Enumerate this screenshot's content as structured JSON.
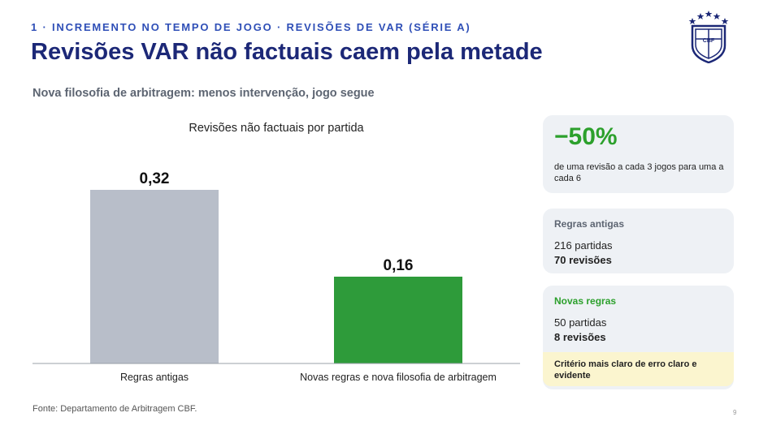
{
  "header": {
    "eyebrow": "1 · INCREMENTO NO TEMPO DE JOGO  · REVISÕES DE VAR (SÉRIE A)",
    "title": "Revisões VAR não factuais caem pela metade",
    "subtitle": "Nova filosofia de arbitragem: menos intervenção, jogo segue",
    "logo_text": "CBF"
  },
  "chart_data": {
    "type": "bar",
    "title": "Revisões não factuais por partida",
    "categories": [
      "Regras antigas",
      "Novas regras e nova filosofia de arbitragem"
    ],
    "values": [
      0.32,
      0.16
    ],
    "value_labels": [
      "0,32",
      "0,16"
    ],
    "colors": [
      "#b8bec9",
      "#2e9b3a"
    ],
    "ylim": [
      0,
      0.32
    ],
    "grid": false,
    "legend": "none"
  },
  "cards": {
    "highlight": {
      "value": "−50%",
      "text": "de uma revisão a cada 3 jogos para uma a cada 6"
    },
    "old": {
      "label": "Regras antigas",
      "matches": "216 partidas",
      "reviews": "70 revisões"
    },
    "new": {
      "label": "Novas regras",
      "matches": "50 partidas",
      "reviews": "8 revisões"
    },
    "note": "Critério mais claro de erro claro e evidente"
  },
  "footer": {
    "source": "Fonte: Departamento de Arbitragem CBF.",
    "page": "9"
  },
  "colors": {
    "accent_blue": "#2f4fb7",
    "title_navy": "#1c2877",
    "green": "#2ca02c",
    "gray_bar": "#b8bec9"
  }
}
